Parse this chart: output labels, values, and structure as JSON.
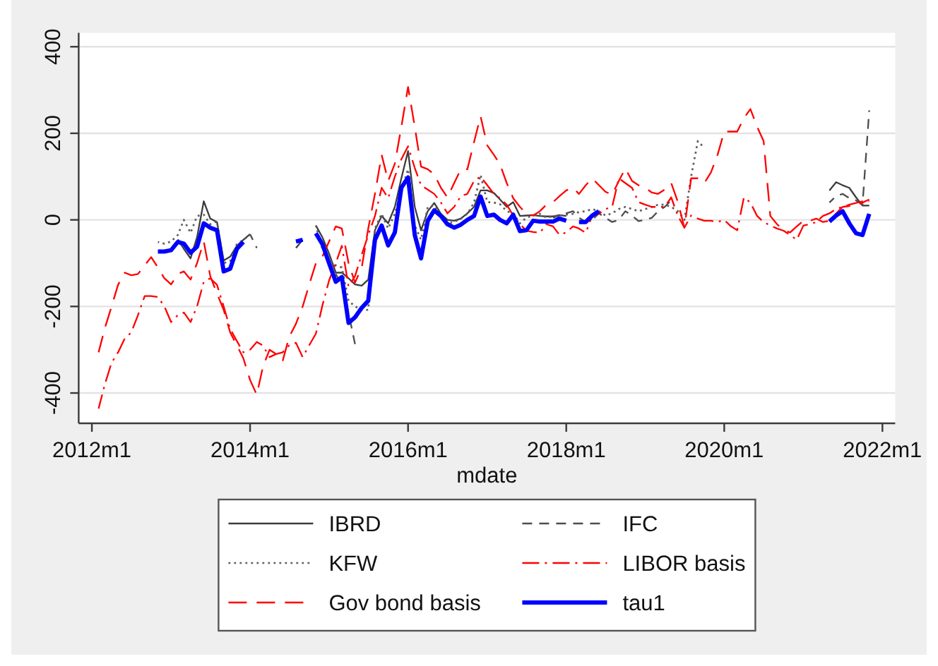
{
  "chart_data": {
    "type": "line",
    "xlabel": "mdate",
    "x": [
      "2012-02",
      "2012-03",
      "2012-04",
      "2012-05",
      "2012-06",
      "2012-07",
      "2012-08",
      "2012-09",
      "2012-10",
      "2012-11",
      "2012-12",
      "2013-01",
      "2013-02",
      "2013-03",
      "2013-04",
      "2013-05",
      "2013-06",
      "2013-07",
      "2013-08",
      "2013-09",
      "2013-10",
      "2013-11",
      "2013-12",
      "2014-01",
      "2014-02",
      "2014-03",
      "2014-04",
      "2014-05",
      "2014-06",
      "2014-07",
      "2014-08",
      "2014-09",
      "2014-10",
      "2014-11",
      "2014-12",
      "2015-01",
      "2015-02",
      "2015-03",
      "2015-04",
      "2015-05",
      "2015-06",
      "2015-07",
      "2015-08",
      "2015-09",
      "2015-10",
      "2015-11",
      "2015-12",
      "2016-01",
      "2016-02",
      "2016-03",
      "2016-04",
      "2016-05",
      "2016-06",
      "2016-07",
      "2016-08",
      "2016-09",
      "2016-10",
      "2016-11",
      "2016-12",
      "2017-01",
      "2017-02",
      "2017-03",
      "2017-04",
      "2017-05",
      "2017-06",
      "2017-07",
      "2017-08",
      "2017-09",
      "2017-10",
      "2017-11",
      "2017-12",
      "2018-01",
      "2018-02",
      "2018-03",
      "2018-04",
      "2018-05",
      "2018-06",
      "2018-07",
      "2018-08",
      "2018-09",
      "2018-10",
      "2018-11",
      "2018-12",
      "2019-01",
      "2019-02",
      "2019-03",
      "2019-04",
      "2019-05",
      "2019-06",
      "2019-07",
      "2019-08",
      "2019-09",
      "2019-10",
      "2019-11",
      "2019-12",
      "2020-01",
      "2020-02",
      "2020-03",
      "2020-04",
      "2020-05",
      "2020-06",
      "2020-07",
      "2020-08",
      "2020-09",
      "2020-10",
      "2020-11",
      "2020-12",
      "2021-01",
      "2021-02",
      "2021-03",
      "2021-04",
      "2021-05",
      "2021-06",
      "2021-07",
      "2021-08",
      "2021-09",
      "2021-10",
      "2021-11"
    ],
    "series": [
      {
        "name": "IBRD",
        "color": "#3d3d3d",
        "line_style": "solid",
        "values": [
          null,
          null,
          null,
          null,
          null,
          null,
          null,
          null,
          null,
          null,
          null,
          null,
          -45,
          -67,
          -89,
          -40,
          43,
          3,
          -5,
          -94,
          -85,
          -60,
          -46,
          -33,
          null,
          null,
          null,
          null,
          null,
          null,
          -65,
          -46,
          null,
          -13,
          -40,
          -78,
          -122,
          -122,
          -135,
          -149,
          -152,
          -138,
          -24,
          9,
          -8,
          30,
          96,
          159,
          30,
          -24,
          20,
          39,
          14,
          0,
          -2,
          3,
          15,
          30,
          68,
          68,
          62,
          47,
          30,
          41,
          9,
          10,
          11,
          9,
          8,
          8,
          11,
          9,
          null,
          null,
          null,
          null,
          null,
          null,
          null,
          null,
          null,
          null,
          null,
          null,
          null,
          null,
          null,
          null,
          null,
          null,
          null,
          null,
          null,
          null,
          null,
          null,
          null,
          null,
          null,
          null,
          null,
          null,
          null,
          null,
          null,
          null,
          null,
          null,
          null,
          null,
          null,
          68,
          87,
          80,
          74,
          52,
          33,
          33
        ]
      },
      {
        "name": "IFC",
        "color": "#4d4d4d",
        "line_style": "dashed",
        "values": [
          null,
          null,
          null,
          null,
          null,
          null,
          null,
          null,
          null,
          null,
          null,
          null,
          null,
          null,
          null,
          null,
          null,
          null,
          null,
          null,
          null,
          null,
          null,
          -33,
          -65,
          null,
          null,
          null,
          null,
          null,
          null,
          null,
          null,
          null,
          null,
          null,
          -125,
          -150,
          -215,
          -287,
          null,
          null,
          null,
          null,
          null,
          null,
          null,
          null,
          null,
          null,
          null,
          null,
          null,
          null,
          null,
          null,
          null,
          null,
          null,
          null,
          null,
          null,
          null,
          null,
          null,
          null,
          null,
          null,
          null,
          5,
          10,
          15,
          20,
          5,
          -5,
          0,
          15,
          5,
          -5,
          0,
          20,
          10,
          -3,
          0,
          5,
          20,
          30,
          45,
          null,
          null,
          null,
          null,
          null,
          null,
          null,
          null,
          null,
          null,
          null,
          null,
          null,
          null,
          null,
          null,
          null,
          null,
          null,
          null,
          null,
          null,
          null,
          40,
          55,
          60,
          50,
          45,
          35,
          253
        ]
      },
      {
        "name": "KFW",
        "color": "#5e5e5e",
        "line_style": "dotted",
        "values": [
          null,
          null,
          null,
          null,
          null,
          null,
          null,
          null,
          null,
          -51,
          -55,
          -50,
          -35,
          0,
          -30,
          9,
          12,
          -10,
          -4,
          -100,
          -95,
          -56,
          -46,
          -35,
          null,
          null,
          null,
          null,
          null,
          null,
          null,
          null,
          null,
          -13,
          -67,
          -90,
          -105,
          -110,
          -187,
          -200,
          -208,
          -208,
          -20,
          14,
          -20,
          14,
          68,
          117,
          -13,
          -46,
          30,
          33,
          11,
          -8,
          -5,
          3,
          14,
          40,
          104,
          41,
          40,
          36,
          20,
          15,
          -8,
          5,
          10,
          14,
          5,
          8,
          10,
          12,
          14,
          18,
          20,
          25,
          20,
          10,
          15,
          25,
          30,
          25,
          20,
          25,
          30,
          35,
          35,
          30,
          20,
          0,
          100,
          182,
          166,
          null,
          null,
          null,
          null,
          null,
          null,
          null,
          null,
          null,
          null,
          null,
          null,
          null,
          null,
          null,
          null,
          null,
          null,
          null,
          null,
          null,
          null,
          null,
          null,
          null
        ]
      },
      {
        "name": "LIBOR basis",
        "color": "#ff0000",
        "line_style": "dashdot",
        "values": [
          -436,
          -380,
          -330,
          -306,
          -274,
          -260,
          -220,
          -176,
          -176,
          -178,
          -200,
          -236,
          -220,
          -214,
          -236,
          -200,
          -143,
          -135,
          -150,
          -200,
          -252,
          -280,
          -306,
          -300,
          -282,
          -290,
          -317,
          -310,
          -306,
          -290,
          -284,
          -317,
          -290,
          -263,
          -198,
          -140,
          -100,
          -60,
          -154,
          -130,
          -80,
          -35,
          9,
          74,
          50,
          100,
          140,
          170,
          120,
          80,
          70,
          60,
          40,
          15,
          30,
          55,
          60,
          90,
          100,
          80,
          60,
          50,
          35,
          10,
          -10,
          -25,
          -28,
          -30,
          -10,
          -15,
          -35,
          -29,
          -15,
          -20,
          -30,
          10,
          14,
          25,
          30,
          96,
          85,
          74,
          41,
          35,
          30,
          30,
          30,
          52,
          9,
          -18,
          10,
          3,
          -2,
          -2,
          -5,
          0,
          -15,
          -24,
          52,
          40,
          9,
          -5,
          -13,
          -20,
          -25,
          -35,
          -46,
          -13,
          -10,
          -5,
          9,
          15,
          25,
          30,
          35,
          39,
          43,
          43
        ]
      },
      {
        "name": "Gov bond basis",
        "color": "#ff0000",
        "line_style": "longdash",
        "values": [
          -306,
          -250,
          -200,
          -150,
          -122,
          -128,
          -125,
          -105,
          -86,
          -110,
          -135,
          -149,
          -125,
          -119,
          -138,
          -100,
          -50,
          -130,
          -170,
          -208,
          -260,
          -290,
          -320,
          -370,
          -404,
          -340,
          -300,
          -310,
          -325,
          -270,
          -240,
          -200,
          -150,
          -100,
          -85,
          -50,
          -15,
          -20,
          -100,
          -145,
          -110,
          -20,
          60,
          150,
          90,
          130,
          215,
          307,
          215,
          123,
          117,
          105,
          74,
          52,
          85,
          117,
          117,
          180,
          239,
          172,
          150,
          128,
          85,
          50,
          30,
          14,
          10,
          20,
          35,
          41,
          55,
          68,
          74,
          60,
          80,
          96,
          80,
          65,
          58,
          90,
          119,
          90,
          80,
          74,
          63,
          60,
          70,
          85,
          41,
          -18,
          96,
          96,
          85,
          110,
          150,
          204,
          204,
          204,
          235,
          256,
          215,
          182,
          9,
          -10,
          -24,
          -29,
          -15,
          -2,
          -2,
          3,
          -5,
          -2,
          15,
          30,
          32,
          33,
          40,
          47
        ]
      },
      {
        "name": "tau1",
        "color": "#0000ff",
        "line_style": "solid",
        "values": [
          null,
          null,
          null,
          null,
          null,
          null,
          null,
          null,
          null,
          -73,
          -73,
          -70,
          -51,
          -55,
          -76,
          -62,
          -8,
          -18,
          -24,
          -119,
          -113,
          -67,
          -51,
          null,
          null,
          null,
          null,
          null,
          null,
          null,
          -50,
          -46,
          null,
          -31,
          -56,
          -100,
          -143,
          -132,
          -238,
          -225,
          -203,
          -187,
          -46,
          -13,
          -59,
          -29,
          74,
          98,
          -35,
          -89,
          -2,
          22,
          9,
          -10,
          -18,
          -11,
          0,
          9,
          54,
          9,
          12,
          0,
          -8,
          12,
          -26,
          -24,
          -2,
          -4,
          -4,
          -4,
          3,
          -2,
          null,
          -5,
          -5,
          10,
          20,
          null,
          null,
          null,
          null,
          null,
          null,
          null,
          null,
          null,
          null,
          null,
          null,
          null,
          null,
          null,
          null,
          null,
          null,
          null,
          null,
          null,
          null,
          null,
          null,
          null,
          null,
          null,
          null,
          null,
          null,
          null,
          null,
          null,
          null,
          -4,
          10,
          20,
          -8,
          -31,
          -35,
          14
        ]
      }
    ],
    "xlim": [
      "2011-11",
      "2022-03"
    ],
    "xticks": [
      {
        "value": "2012-01",
        "label": "2012m1"
      },
      {
        "value": "2014-01",
        "label": "2014m1"
      },
      {
        "value": "2016-01",
        "label": "2016m1"
      },
      {
        "value": "2018-01",
        "label": "2018m1"
      },
      {
        "value": "2020-01",
        "label": "2020m1"
      },
      {
        "value": "2022-01",
        "label": "2022m1"
      }
    ],
    "ylim": [
      -470,
      432
    ],
    "yticks": [
      -400,
      -200,
      0,
      200,
      400
    ],
    "grid": "y",
    "legend": "bottom"
  }
}
